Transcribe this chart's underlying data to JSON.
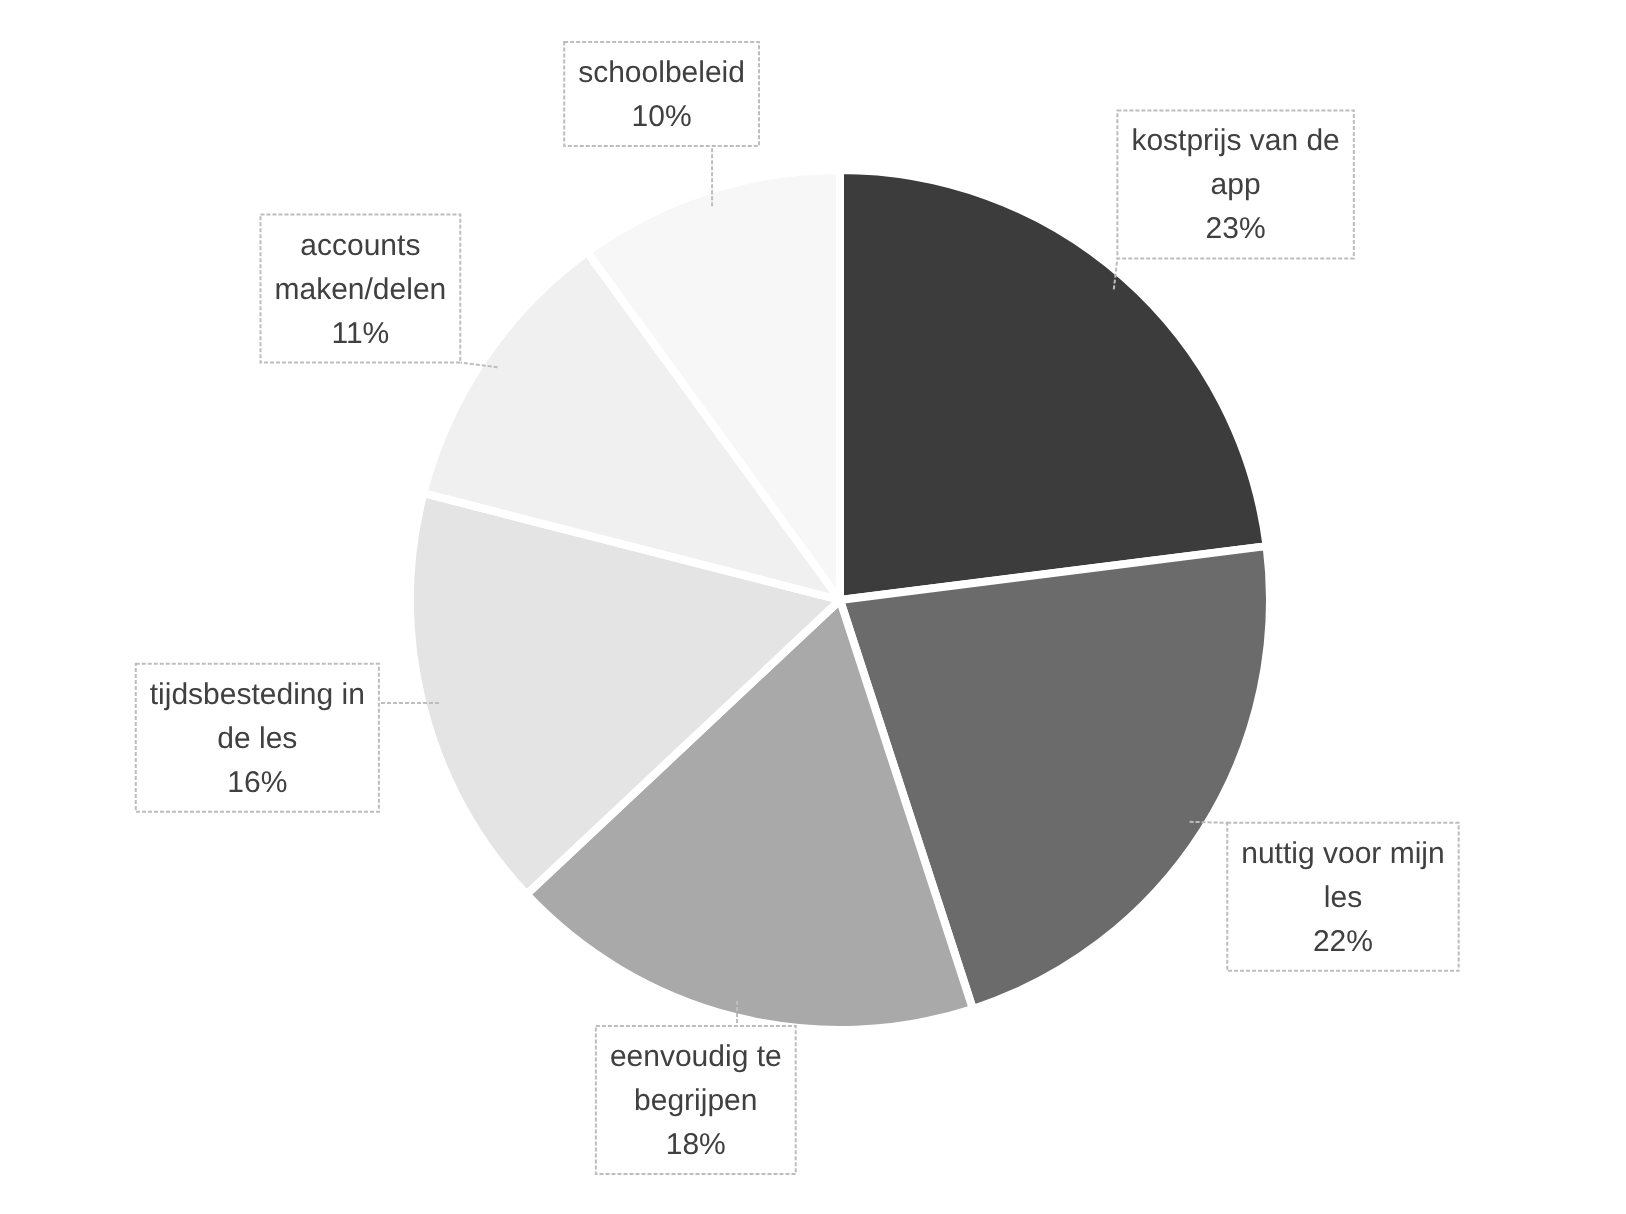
{
  "chart_data": {
    "type": "pie",
    "categories": [
      "kostprijs van de app",
      "nuttig voor mijn les",
      "eenvoudig te begrijpen",
      "tijdsbesteding in de les",
      "accounts maken/delen",
      "schoolbeleid"
    ],
    "values": [
      23,
      22,
      18,
      16,
      11,
      10
    ],
    "colors": [
      "#3c3c3c",
      "#6b6b6b",
      "#a9a9a9",
      "#e4e4e4",
      "#f0f0f0",
      "#f7f7f7"
    ],
    "value_labels": [
      "23%",
      "22%",
      "18%",
      "16%",
      "11%",
      "10%"
    ]
  }
}
